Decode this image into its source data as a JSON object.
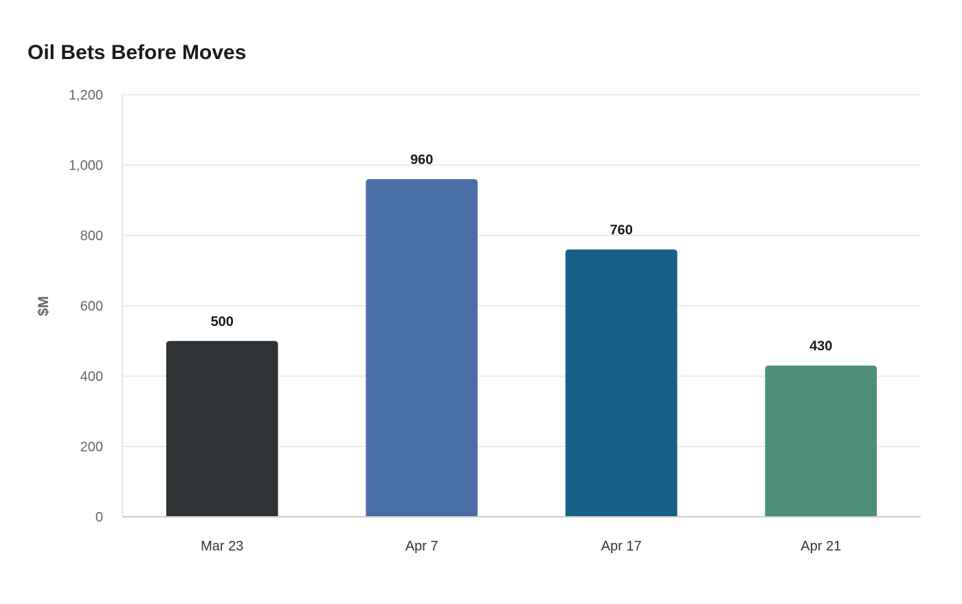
{
  "chart_data": {
    "type": "bar",
    "title": "Oil Bets Before Moves",
    "xlabel": "",
    "ylabel": "$M",
    "categories": [
      "Mar 23",
      "Apr 7",
      "Apr 17",
      "Apr 21"
    ],
    "values": [
      500,
      960,
      760,
      430
    ],
    "value_labels": [
      "500",
      "960",
      "760",
      "430"
    ],
    "colors": [
      "#2e3436",
      "#4a6fa5",
      "#176087",
      "#4e8f7b"
    ],
    "ylim": [
      0,
      1200
    ],
    "yticks": [
      0,
      200,
      400,
      600,
      800,
      1000,
      1200
    ],
    "ytick_labels": [
      "0",
      "200",
      "400",
      "600",
      "800",
      "1,000",
      "1,200"
    ],
    "grid": true,
    "legend": "none"
  }
}
